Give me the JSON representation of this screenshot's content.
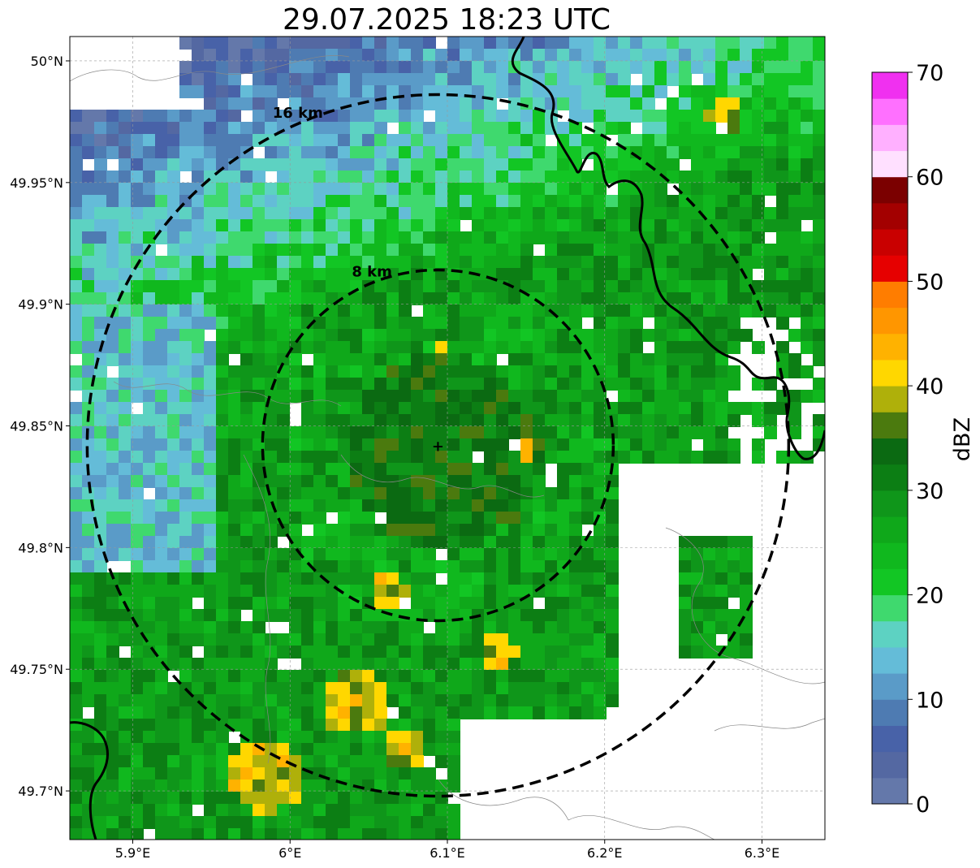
{
  "title": "29.07.2025 18:23 UTC",
  "map": {
    "lon_range": [
      5.86,
      6.34
    ],
    "lat_range": [
      49.68,
      50.01
    ],
    "radar_center": {
      "lon": 6.094,
      "lat": 49.842
    },
    "lon_ticks": [
      {
        "value": 5.9,
        "label": "5.9°E"
      },
      {
        "value": 6.0,
        "label": "6°E"
      },
      {
        "value": 6.1,
        "label": "6.1°E"
      },
      {
        "value": 6.2,
        "label": "6.2°E"
      },
      {
        "value": 6.3,
        "label": "6.3°E"
      }
    ],
    "lat_ticks": [
      {
        "value": 50.0,
        "label": "50°N"
      },
      {
        "value": 49.95,
        "label": "49.95°N"
      },
      {
        "value": 49.9,
        "label": "49.9°N"
      },
      {
        "value": 49.85,
        "label": "49.85°N"
      },
      {
        "value": 49.8,
        "label": "49.8°N"
      },
      {
        "value": 49.75,
        "label": "49.75°N"
      },
      {
        "value": 49.7,
        "label": "49.7°N"
      }
    ],
    "range_rings": [
      {
        "km": 8,
        "label": "8 km"
      },
      {
        "km": 16,
        "label": "16 km"
      }
    ],
    "grid": true,
    "center_marker": "+",
    "map_features": [
      "country-border",
      "admin-boundaries",
      "radar-echo-field"
    ]
  },
  "colorbar": {
    "label": "dBZ",
    "min": 0,
    "max": 70,
    "step": 2.5,
    "tick_values": [
      0,
      10,
      20,
      30,
      40,
      50,
      60,
      70
    ],
    "tick_labels": [
      "0",
      "10",
      "20",
      "30",
      "40",
      "50",
      "60",
      "70"
    ],
    "colors": [
      "#6478aa",
      "#5468a2",
      "#4862a8",
      "#4e7bb2",
      "#5a9bc8",
      "#64bcd8",
      "#5dd2c2",
      "#3fd96e",
      "#12c624",
      "#10b81e",
      "#0fa81a",
      "#0f961a",
      "#0c7e14",
      "#0b6a12",
      "#4b7a0e",
      "#afb00a",
      "#ffd700",
      "#ffb200",
      "#ff9600",
      "#ff7d00",
      "#e60000",
      "#c90000",
      "#a30000",
      "#7b0000",
      "#ffe0ff",
      "#ffb0ff",
      "#ff70ff",
      "#f030f0"
    ]
  }
}
